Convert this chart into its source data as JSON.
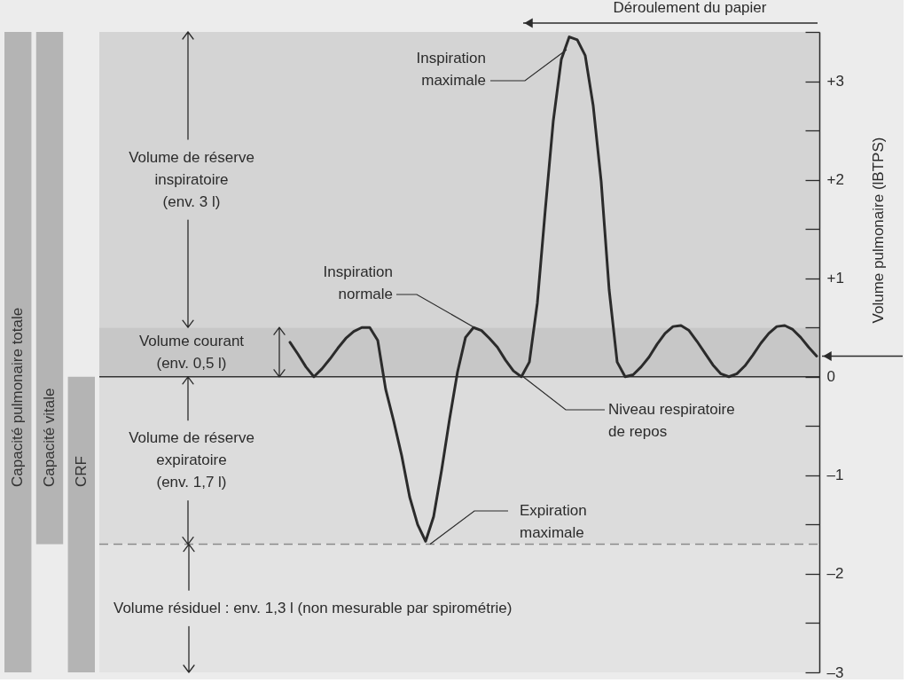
{
  "chart_data": [
    {
      "type": "bar",
      "categories": [
        "Capacité pulmonaire totale",
        "Capacité vitale",
        "CRF"
      ],
      "base": [
        -3,
        -1.7,
        -3
      ],
      "values": [
        6.5,
        5.2,
        3
      ],
      "color": "#b4b4b4",
      "ylim": [
        -3,
        3.5
      ],
      "tick_labels": false
    },
    {
      "type": "line",
      "categories": [
        null,
        null,
        null,
        null,
        null,
        null,
        null,
        null,
        null,
        null,
        null,
        null,
        null,
        null,
        null,
        null,
        null,
        null,
        null,
        null,
        null,
        null,
        null,
        null,
        null,
        null,
        null,
        null,
        null,
        null,
        null,
        null,
        null,
        null,
        null,
        null,
        null,
        null,
        null,
        null,
        null,
        null,
        null,
        null,
        null,
        null,
        null,
        null,
        null,
        null,
        null,
        null,
        null,
        null,
        null,
        null,
        null,
        null,
        null,
        null,
        null,
        null,
        null,
        null,
        null,
        null,
        null
      ],
      "values": [
        0.35,
        0.23,
        0.1,
        0.0,
        0.08,
        0.18,
        0.29,
        0.39,
        0.46,
        0.5,
        0.5,
        0.37,
        -0.13,
        -0.45,
        -0.8,
        -1.22,
        -1.5,
        -1.67,
        -1.42,
        -0.95,
        -0.43,
        0.05,
        0.4,
        0.5,
        0.47,
        0.39,
        0.3,
        0.17,
        0.06,
        0.0,
        0.15,
        0.75,
        1.7,
        2.6,
        3.22,
        3.45,
        3.42,
        3.26,
        2.75,
        1.98,
        0.88,
        0.15,
        0.0,
        0.02,
        0.1,
        0.2,
        0.33,
        0.44,
        0.51,
        0.52,
        0.47,
        0.36,
        0.24,
        0.12,
        0.03,
        0.0,
        0.03,
        0.11,
        0.22,
        0.34,
        0.44,
        0.51,
        0.52,
        0.48,
        0.4,
        0.3,
        0.21
      ],
      "color": "#2b2b2b",
      "ylim": [
        -3,
        3.5
      ],
      "yticks": [
        {
          "value": 3.5,
          "label": null
        },
        {
          "value": 3,
          "label": "+3"
        },
        {
          "value": 2.5,
          "label": null
        },
        {
          "value": 2,
          "label": "+2"
        },
        {
          "value": 1.5,
          "label": null
        },
        {
          "value": 1,
          "label": "+1"
        },
        {
          "value": 0.5,
          "label": null
        },
        0,
        {
          "value": -0.5,
          "label": null
        },
        {
          "value": -1,
          "label": "–1"
        },
        {
          "value": -1.5,
          "label": null
        },
        {
          "value": -2,
          "label": "–2"
        },
        {
          "value": -2.5,
          "label": null
        },
        {
          "value": -3,
          "label": "–3"
        }
      ],
      "ylabel": "Volume pulmonaire (lBTPS)",
      "tick_labels": "y",
      "bands": [
        {
          "axis": "y",
          "from": 0.5,
          "to": 3.5,
          "label": "Volume de réserve\ninspiratoire\n(env. 3 l)",
          "color": "#d4d4d4"
        },
        {
          "axis": "y",
          "from": 0,
          "to": 0.5,
          "label": "Volume courant\n(env. 0,5 l)",
          "color": "#c7c7c7"
        },
        {
          "axis": "y",
          "from": -1.7,
          "to": 0,
          "label": "Volume de réserve\nexpiratoire\n(env. 1,7 l)",
          "color": "#dcdcdc"
        },
        {
          "axis": "y",
          "from": -3,
          "to": -1.7,
          "label": "Volume résiduel : env. 1,3 l (non mesurable par spirométrie)",
          "color": "#e3e3e3"
        }
      ],
      "ref_lines": [
        {
          "axis": "y",
          "value": 0,
          "color": "#333333"
        },
        {
          "axis": "y",
          "value": -1.7,
          "color": "#8a8a8a",
          "line_style": "dashed"
        }
      ],
      "annotations": [
        "Déroulement du papier",
        "Inspiration\nmaximale",
        {
          "text": "Inspiration\nnormale",
          "y": 0.5
        },
        {
          "text": "Niveau respiratoire\nde repos",
          "y": 0
        },
        {
          "text": "Expiration\nmaximale",
          "y": -1.7
        }
      ]
    }
  ]
}
